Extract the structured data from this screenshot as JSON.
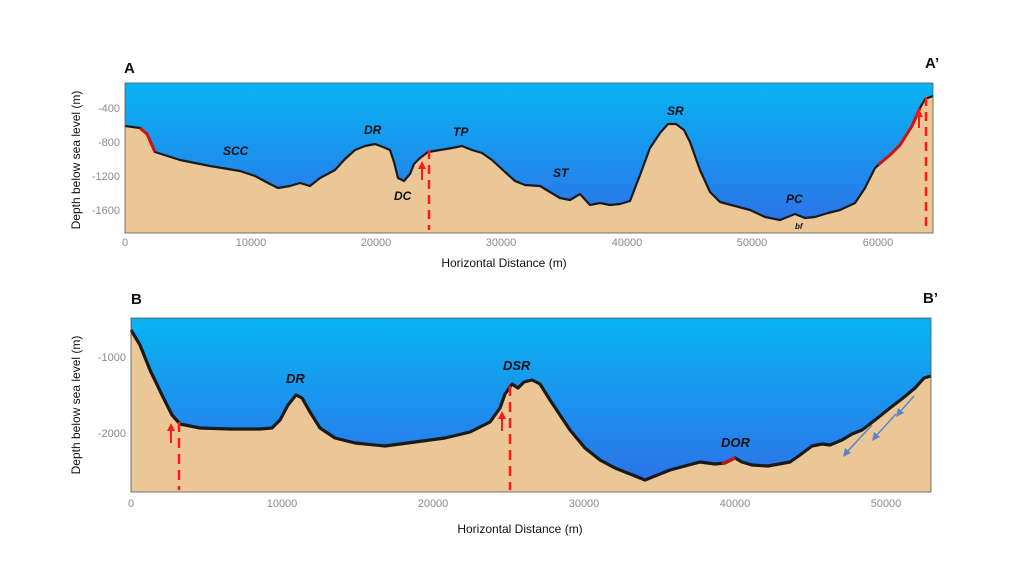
{
  "colors": {
    "water_top": "#08b4f2",
    "water_bottom": "#2f6ee8",
    "sediment": "#ebc696",
    "seafloor_line": "#1a1a1a",
    "fault": "#ff1a1a",
    "red_drape": "#cc1111",
    "flow_arrow": "#5b86c4"
  },
  "panels": [
    {
      "id": "A",
      "label_left": "A",
      "label_right": "A’",
      "ylabel": "Depth below sea level (m)",
      "xlabel": "Horizontal Distance (m)",
      "y_ticks": [
        "-400",
        "-800",
        "-1200",
        "-1600"
      ],
      "x_ticks": [
        "0",
        "10000",
        "20000",
        "30000",
        "40000",
        "50000",
        "60000"
      ],
      "features": [
        "SCC",
        "DR",
        "DC",
        "TP",
        "ST",
        "SR",
        "PC",
        "bf"
      ],
      "fault_icons": [
        "fault-arrow-up-icon",
        "fault-arrow-up-icon"
      ]
    },
    {
      "id": "B",
      "label_left": "B",
      "label_right": "B’",
      "ylabel": "Depth below sea level (m)",
      "xlabel": "Horizontal Distance (m)",
      "y_ticks": [
        "-1000",
        "-2000"
      ],
      "x_ticks": [
        "0",
        "10000",
        "20000",
        "30000",
        "40000",
        "50000"
      ],
      "features": [
        "DR",
        "DSR",
        "DOR"
      ],
      "fault_icons": [
        "fault-arrow-up-icon",
        "fault-arrow-up-icon"
      ],
      "flow_icons": [
        "downslope-arrow-icon",
        "downslope-arrow-icon",
        "downslope-arrow-icon"
      ]
    }
  ]
}
